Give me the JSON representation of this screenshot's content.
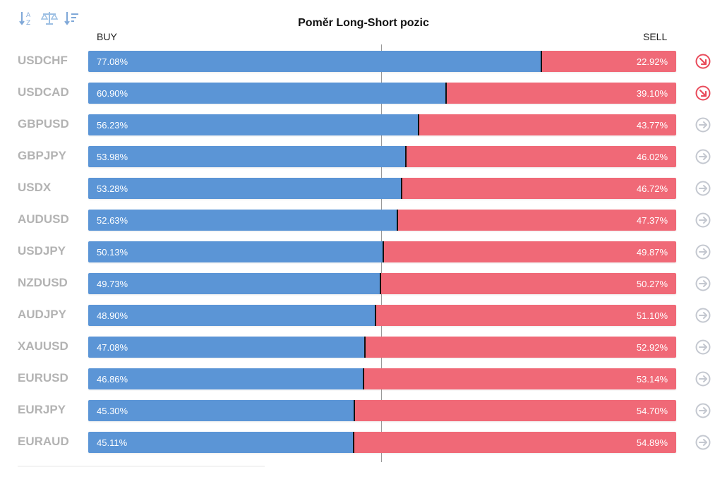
{
  "toolbar": {
    "icons": [
      "sort-alphabetical-icon",
      "balance-scale-icon",
      "sort-descending-icon"
    ]
  },
  "title": "Poměr Long-Short pozic",
  "labels": {
    "buy": "BUY",
    "sell": "SELL"
  },
  "colors": {
    "buy": "#5b95d6",
    "sell": "#f06977",
    "arrow_down": "#e94b5b",
    "arrow_neutral": "#c4c8d0"
  },
  "chart_data": {
    "type": "bar",
    "stacked": true,
    "orientation": "horizontal",
    "title": "Poměr Long-Short pozic",
    "categories": [
      "USDCHF",
      "USDCAD",
      "GBPUSD",
      "GBPJPY",
      "USDX",
      "AUDUSD",
      "USDJPY",
      "NZDUSD",
      "AUDJPY",
      "XAUUSD",
      "EURUSD",
      "EURJPY",
      "EURAUD"
    ],
    "series": [
      {
        "name": "BUY",
        "values": [
          77.08,
          60.9,
          56.23,
          53.98,
          53.28,
          52.63,
          50.13,
          49.73,
          48.9,
          47.08,
          46.86,
          45.3,
          45.11
        ]
      },
      {
        "name": "SELL",
        "values": [
          22.92,
          39.1,
          43.77,
          46.02,
          46.72,
          47.37,
          49.87,
          50.27,
          51.1,
          52.92,
          53.14,
          54.7,
          54.89
        ]
      }
    ],
    "buy_labels": [
      "77.08%",
      "60.90%",
      "56.23%",
      "53.98%",
      "53.28%",
      "52.63%",
      "50.13%",
      "49.73%",
      "48.90%",
      "47.08%",
      "46.86%",
      "45.30%",
      "45.11%"
    ],
    "sell_labels": [
      "22.92%",
      "39.10%",
      "43.77%",
      "46.02%",
      "46.72%",
      "47.37%",
      "49.87%",
      "50.27%",
      "51.10%",
      "52.92%",
      "53.14%",
      "54.70%",
      "54.89%"
    ],
    "trend_icons": [
      "arrow-down-right-icon",
      "arrow-down-right-icon",
      "arrow-right-icon",
      "arrow-right-icon",
      "arrow-right-icon",
      "arrow-right-icon",
      "arrow-right-icon",
      "arrow-right-icon",
      "arrow-right-icon",
      "arrow-right-icon",
      "arrow-right-icon",
      "arrow-right-icon",
      "arrow-right-icon"
    ],
    "xlim": [
      0,
      100
    ],
    "reference_line": 50
  }
}
